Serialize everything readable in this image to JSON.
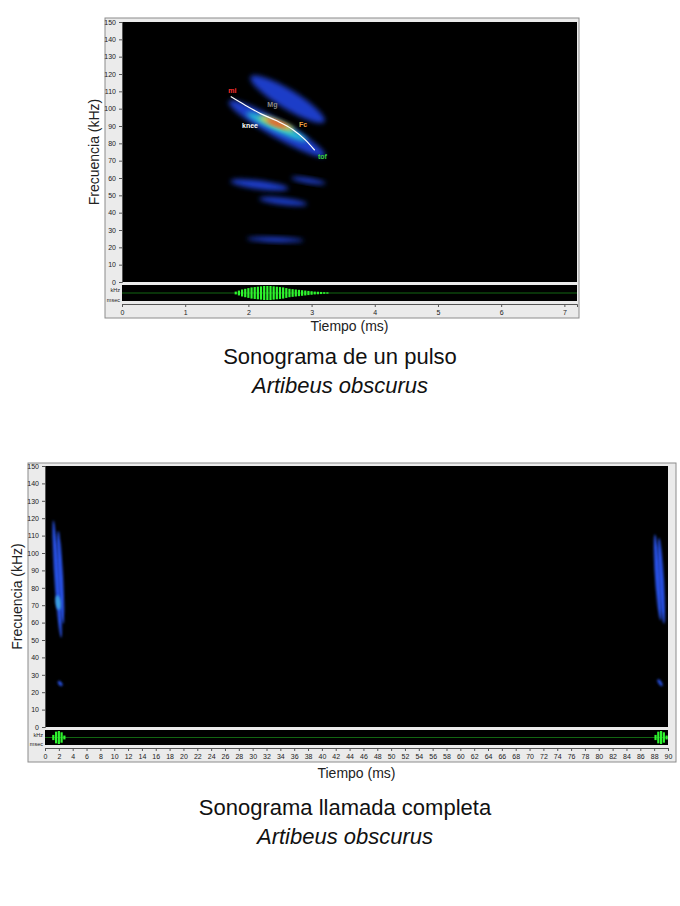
{
  "chart_data": [
    {
      "type": "spectrogram",
      "title": "Sonograma de un pulso",
      "subtitle": "Artibeus obscurus",
      "x_label": "Tiempo (ms)",
      "y_label": "Frecuencia (kHz)",
      "xlim": [
        0,
        7.2
      ],
      "xticks": [
        0,
        1,
        2,
        3,
        4,
        5,
        6,
        7
      ],
      "ylim": [
        0,
        150
      ],
      "yticks": [
        0,
        10,
        20,
        30,
        40,
        50,
        60,
        70,
        80,
        90,
        100,
        110,
        120,
        130,
        140,
        150
      ],
      "components": [
        {
          "x": [
            2.1,
            3.14
          ],
          "y": [
            117,
            94
          ],
          "spread": 11,
          "color": "#1e3cc8"
        },
        {
          "x": [
            1.75,
            3.15
          ],
          "y": [
            103,
            74
          ],
          "spread": 10,
          "color": "#1e3cc8"
        },
        {
          "x": [
            1.75,
            2.6
          ],
          "y": [
            58,
            54
          ],
          "spread": 5,
          "color": "#1e3cc8"
        },
        {
          "x": [
            2.2,
            2.9
          ],
          "y": [
            48,
            45
          ],
          "spread": 4,
          "color": "#1e3cc8"
        },
        {
          "x": [
            2.7,
            3.2
          ],
          "y": [
            60,
            57
          ],
          "spread": 3,
          "color": "#1e3cc8"
        },
        {
          "x": [
            2.0,
            2.85
          ],
          "y": [
            25,
            24
          ],
          "spread": 3,
          "color": "#1e3cc8"
        },
        {
          "x": [
            2.0,
            2.9
          ],
          "y": [
            97,
            82
          ],
          "spread": 5,
          "color": "#27c7d6"
        },
        {
          "x": [
            2.2,
            2.7
          ],
          "y": [
            95,
            88
          ],
          "spread": 4,
          "color": "#e8e23a"
        },
        {
          "x": [
            2.3,
            2.6
          ],
          "y": [
            93.5,
            89.5
          ],
          "spread": 2.5,
          "color": "#e8261e"
        }
      ],
      "curve": {
        "x": [
          1.72,
          1.95,
          2.2,
          2.45,
          2.7,
          2.9,
          3.05
        ],
        "y": [
          107,
          102,
          97,
          93,
          88,
          82,
          76
        ],
        "color": "#ffffff"
      },
      "annotations": [
        {
          "text": "mi",
          "x": 1.68,
          "y": 109,
          "color": "#ff3030"
        },
        {
          "text": "Mg",
          "x": 2.3,
          "y": 101,
          "color": "#8a8a8a"
        },
        {
          "text": "knee",
          "x": 1.9,
          "y": 89,
          "color": "#ffffff"
        },
        {
          "text": "Fc",
          "x": 2.8,
          "y": 89.5,
          "color": "#f0a040"
        },
        {
          "text": "tof",
          "x": 3.1,
          "y": 71,
          "color": "#3cd23c"
        }
      ],
      "waveform": {
        "y_label": "kHz",
        "x_label": "msec",
        "ylim": [
          -1,
          1
        ],
        "color": "#2ef52e",
        "x": [
          1.8,
          1.85,
          1.9,
          1.95,
          2.0,
          2.05,
          2.1,
          2.15,
          2.2,
          2.25,
          2.3,
          2.35,
          2.4,
          2.45,
          2.5,
          2.55,
          2.6,
          2.65,
          2.7,
          2.75,
          2.8,
          2.85,
          2.9,
          2.95,
          3.0,
          3.05,
          3.1,
          3.15,
          3.2,
          3.25
        ],
        "y": [
          0.2,
          0.35,
          0.5,
          0.6,
          0.7,
          0.8,
          0.85,
          0.9,
          0.95,
          1,
          1,
          1,
          0.95,
          0.9,
          0.85,
          0.8,
          0.7,
          0.6,
          0.55,
          0.5,
          0.45,
          0.4,
          0.35,
          0.3,
          0.25,
          0.2,
          0.18,
          0.15,
          0.12,
          0.1
        ]
      }
    },
    {
      "type": "spectrogram",
      "title": "Sonograma llamada completa",
      "subtitle": "Artibeus obscurus",
      "x_label": "Tiempo (ms)",
      "y_label": "Frecuencia (kHz)",
      "xlim": [
        0,
        90
      ],
      "xticks": [
        0,
        2,
        4,
        6,
        8,
        10,
        12,
        14,
        16,
        18,
        20,
        22,
        24,
        26,
        28,
        30,
        32,
        34,
        36,
        38,
        40,
        42,
        44,
        46,
        48,
        50,
        52,
        54,
        56,
        58,
        60,
        62,
        64,
        66,
        68,
        70,
        72,
        74,
        76,
        78,
        80,
        82,
        84,
        86,
        88,
        90
      ],
      "ylim": [
        0,
        150
      ],
      "yticks": [
        0,
        10,
        20,
        30,
        40,
        50,
        60,
        70,
        80,
        90,
        100,
        110,
        120,
        130,
        140,
        150
      ],
      "components": [
        {
          "x": [
            1.2,
            2.3
          ],
          "y": [
            118,
            52
          ],
          "spread": 3,
          "color": "#2850e0"
        },
        {
          "x": [
            1.9,
            2.6
          ],
          "y": [
            112,
            60
          ],
          "spread": 3,
          "color": "#2850e0"
        },
        {
          "x": [
            1.8,
            2.0
          ],
          "y": [
            75,
            68
          ],
          "spread": 3,
          "color": "#3aa0e0"
        },
        {
          "x": [
            2.0,
            2.4
          ],
          "y": [
            26,
            24
          ],
          "spread": 2,
          "color": "#2850e0"
        },
        {
          "x": [
            88.1,
            88.9
          ],
          "y": [
            110,
            62
          ],
          "spread": 3,
          "color": "#2850e0"
        },
        {
          "x": [
            88.7,
            89.4
          ],
          "y": [
            108,
            60
          ],
          "spread": 3,
          "color": "#2850e0"
        },
        {
          "x": [
            88.6,
            89.1
          ],
          "y": [
            27,
            24
          ],
          "spread": 2,
          "color": "#2850e0"
        }
      ],
      "waveform": {
        "y_label": "kHz",
        "x_label": "msec",
        "ylim": [
          -1,
          1
        ],
        "color": "#2ef52e",
        "x": [
          1.2,
          1.6,
          2.0,
          2.4,
          2.8,
          88.2,
          88.6,
          89.0,
          89.4,
          89.8
        ],
        "y": [
          0.4,
          0.9,
          1,
          0.8,
          0.3,
          0.4,
          0.9,
          1,
          0.8,
          0.3
        ]
      }
    }
  ]
}
